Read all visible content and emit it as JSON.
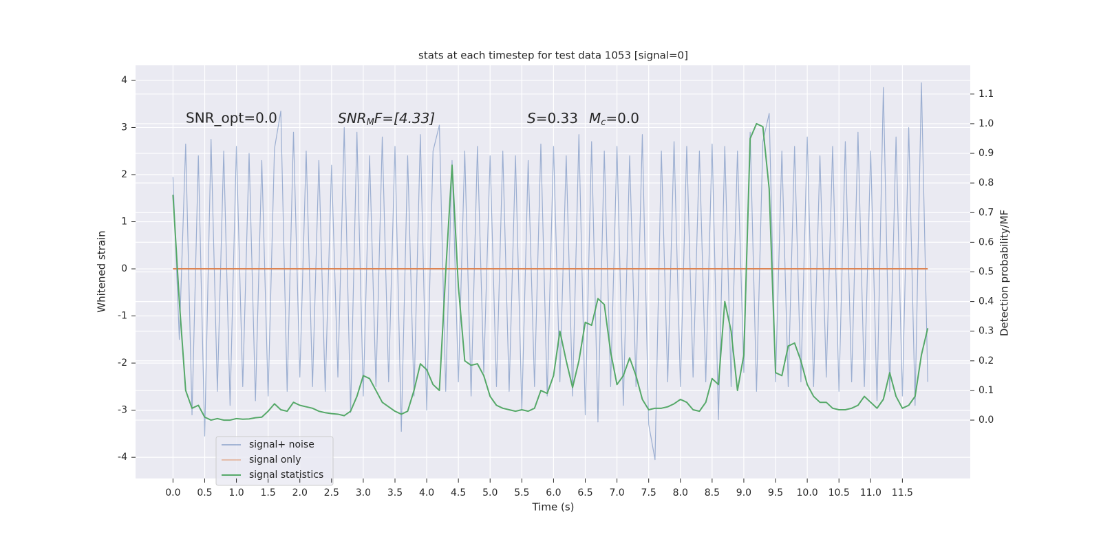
{
  "chart_data": {
    "type": "line",
    "title": "stats at each timestep for test data 1053 [signal=0]",
    "xlabel": "Time (s)",
    "ylabel": "Whitened strain",
    "y2label": "Detection probability/MF",
    "annotations": [
      "SNR_opt=0.0",
      [
        "SNR",
        "M",
        "F=[4.33]"
      ],
      [
        "S",
        "=0.33",
        "M",
        "c",
        "=0.0"
      ]
    ],
    "xlim": [
      -0.59,
      12.57
    ],
    "ylim": [
      -4.45,
      4.32
    ],
    "y2lim": [
      -0.197,
      1.197
    ],
    "xticks": [
      {
        "value": 0,
        "label": "0.0"
      },
      0.5,
      {
        "value": 1,
        "label": "1.0"
      },
      1.5,
      {
        "value": 2,
        "label": "2.0"
      },
      2.5,
      {
        "value": 3,
        "label": "3.0"
      },
      3.5,
      {
        "value": 4,
        "label": "4.0"
      },
      4.5,
      {
        "value": 5,
        "label": "5.0"
      },
      5.5,
      {
        "value": 6,
        "label": "6.0"
      },
      6.5,
      {
        "value": 7,
        "label": "7.0"
      },
      7.5,
      {
        "value": 8,
        "label": "8.0"
      },
      8.5,
      {
        "value": 9,
        "label": "9.0"
      },
      9.5,
      {
        "value": 10,
        "label": "10.0"
      },
      10.5,
      {
        "value": 11,
        "label": "11.0"
      },
      11.5
    ],
    "yticks": [
      -4,
      -3,
      -2,
      -1,
      0,
      1,
      2,
      3,
      4
    ],
    "y2ticks": [
      {
        "value": 0,
        "label": "0.0"
      },
      0.1,
      0.2,
      0.3,
      0.4,
      0.5,
      0.6,
      0.7,
      0.8,
      0.9,
      {
        "value": 1,
        "label": "1.0"
      },
      1.1
    ],
    "grid": true,
    "legend": "lower left",
    "x": [
      0,
      0.1,
      0.2,
      0.3,
      0.4,
      0.5,
      0.6,
      0.7,
      0.8,
      0.9,
      1,
      1.1,
      1.2,
      1.3,
      1.4,
      1.5,
      1.6,
      1.7,
      1.8,
      1.9,
      2,
      2.1,
      2.2,
      2.3,
      2.4,
      2.5,
      2.6,
      2.7,
      2.8,
      2.9,
      3,
      3.1,
      3.2,
      3.3,
      3.4,
      3.5,
      3.6,
      3.7,
      3.8,
      3.9,
      4,
      4.1,
      4.2,
      4.3,
      4.4,
      4.5,
      4.6,
      4.7,
      4.8,
      4.9,
      5,
      5.1,
      5.2,
      5.3,
      5.4,
      5.5,
      5.6,
      5.7,
      5.8,
      5.9,
      6,
      6.1,
      6.2,
      6.3,
      6.4,
      6.5,
      6.6,
      6.7,
      6.8,
      6.9,
      7,
      7.1,
      7.2,
      7.3,
      7.4,
      7.5,
      7.6,
      7.7,
      7.8,
      7.9,
      8,
      8.1,
      8.2,
      8.3,
      8.4,
      8.5,
      8.6,
      8.7,
      8.8,
      8.9,
      9,
      9.1,
      9.2,
      9.3,
      9.4,
      9.5,
      9.6,
      9.7,
      9.8,
      9.9,
      10,
      10.1,
      10.2,
      10.3,
      10.4,
      10.5,
      10.6,
      10.7,
      10.8,
      10.9,
      11,
      11.1,
      11.2,
      11.3,
      11.4,
      11.5,
      11.6,
      11.7,
      11.8,
      11.9
    ],
    "series": [
      {
        "name": "signal+ noise",
        "color": "#4c72b0",
        "values": [
          1.95,
          -1.5,
          2.65,
          -3.1,
          2.4,
          -3.55,
          2.75,
          -2.6,
          2.5,
          -2.9,
          2.6,
          -2.5,
          2.45,
          -2.8,
          2.3,
          -2.7,
          2.55,
          3.35,
          -2.6,
          2.9,
          -2.3,
          2.5,
          -2.5,
          2.3,
          -2.6,
          2.2,
          -2.3,
          3.0,
          -3.05,
          2.9,
          -2.7,
          2.4,
          -2.5,
          2.8,
          -2.4,
          2.6,
          -3.45,
          2.4,
          -2.7,
          2.85,
          -3.0,
          2.5,
          3.05,
          -2.6,
          2.3,
          -2.4,
          2.5,
          -2.7,
          2.6,
          -2.2,
          2.4,
          -2.5,
          2.5,
          -2.6,
          2.4,
          -3.0,
          2.3,
          -2.5,
          2.65,
          -2.7,
          2.6,
          -2.4,
          2.4,
          -2.7,
          2.85,
          -3.1,
          2.7,
          -3.25,
          2.5,
          -2.5,
          2.6,
          -2.9,
          2.4,
          -2.5,
          2.85,
          -3.3,
          -4.05,
          2.5,
          -2.4,
          2.7,
          -2.5,
          2.6,
          -2.3,
          2.5,
          -2.4,
          2.65,
          -3.2,
          2.6,
          -2.5,
          2.5,
          -2.2,
          2.9,
          -2.6,
          2.7,
          3.3,
          -2.4,
          2.5,
          -2.5,
          2.6,
          -2.4,
          2.8,
          -2.5,
          2.4,
          -2.3,
          2.6,
          -2.6,
          2.7,
          -2.4,
          2.9,
          -2.5,
          2.5,
          -2.8,
          3.85,
          -2.6,
          2.8,
          -2.7,
          3.0,
          -2.9,
          3.95,
          -2.4
        ]
      },
      {
        "name": "signal only",
        "color": "#dd8452",
        "values": [
          0,
          0,
          0,
          0,
          0,
          0,
          0,
          0,
          0,
          0,
          0,
          0,
          0,
          0,
          0,
          0,
          0,
          0,
          0,
          0,
          0,
          0,
          0,
          0,
          0,
          0,
          0,
          0,
          0,
          0,
          0,
          0,
          0,
          0,
          0,
          0,
          0,
          0,
          0,
          0,
          0,
          0,
          0,
          0,
          0,
          0,
          0,
          0,
          0,
          0,
          0,
          0,
          0,
          0,
          0,
          0,
          0,
          0,
          0,
          0,
          0,
          0,
          0,
          0,
          0,
          0,
          0,
          0,
          0,
          0,
          0,
          0,
          0,
          0,
          0,
          0,
          0,
          0,
          0,
          0,
          0,
          0,
          0,
          0,
          0,
          0,
          0,
          0,
          0,
          0,
          0,
          0,
          0,
          0,
          0,
          0,
          0,
          0,
          0,
          0,
          0,
          0,
          0,
          0,
          0,
          0,
          0,
          0,
          0,
          0,
          0,
          0,
          0,
          0,
          0,
          0,
          0,
          0,
          0,
          0
        ]
      },
      {
        "name": "signal statistics",
        "color": "#55a868",
        "axis": "y2",
        "values": [
          0.76,
          0.4,
          0.1,
          0.04,
          0.05,
          0.01,
          0.0,
          0.005,
          0.0,
          0.0,
          0.005,
          0.003,
          0.004,
          0.008,
          0.01,
          0.03,
          0.055,
          0.035,
          0.03,
          0.06,
          0.05,
          0.045,
          0.04,
          0.03,
          0.025,
          0.022,
          0.02,
          0.015,
          0.03,
          0.08,
          0.15,
          0.14,
          0.1,
          0.06,
          0.045,
          0.03,
          0.02,
          0.03,
          0.1,
          0.19,
          0.17,
          0.12,
          0.1,
          0.5,
          0.86,
          0.45,
          0.2,
          0.185,
          0.19,
          0.15,
          0.08,
          0.05,
          0.04,
          0.035,
          0.03,
          0.035,
          0.03,
          0.04,
          0.1,
          0.09,
          0.15,
          0.3,
          0.2,
          0.11,
          0.2,
          0.33,
          0.32,
          0.41,
          0.39,
          0.23,
          0.12,
          0.15,
          0.21,
          0.15,
          0.07,
          0.035,
          0.04,
          0.04,
          0.045,
          0.055,
          0.07,
          0.06,
          0.035,
          0.03,
          0.06,
          0.14,
          0.12,
          0.4,
          0.3,
          0.1,
          0.22,
          0.95,
          1.0,
          0.99,
          0.78,
          0.16,
          0.15,
          0.25,
          0.26,
          0.2,
          0.12,
          0.08,
          0.06,
          0.06,
          0.04,
          0.035,
          0.035,
          0.04,
          0.05,
          0.08,
          0.06,
          0.04,
          0.07,
          0.16,
          0.08,
          0.04,
          0.05,
          0.08,
          0.22,
          0.31
        ]
      }
    ]
  }
}
